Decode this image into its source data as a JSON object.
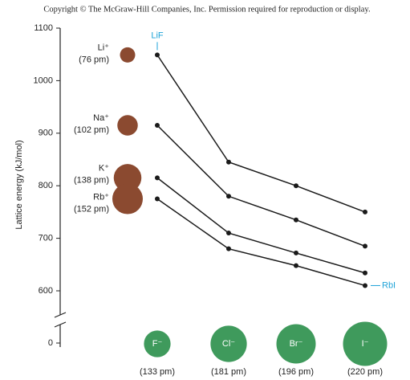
{
  "copyright": "Copyright © The McGraw-Hill Companies, Inc. Permission required for reproduction or display.",
  "chart_data": {
    "type": "line",
    "y_label": "Lattice energy (kJ/mol)",
    "categories": [
      "F⁻",
      "Cl⁻",
      "Br⁻",
      "I⁻"
    ],
    "category_radii": [
      133,
      181,
      196,
      220
    ],
    "category_radius_labels": [
      "(133 pm)",
      "(181 pm)",
      "(196 pm)",
      "(220 pm)"
    ],
    "category_color": "#3f9a5c",
    "series": [
      {
        "name": "Li⁺",
        "radius": 76,
        "radius_label": "(76 pm)",
        "color": "#8b4a30",
        "values": [
          1049,
          845,
          800,
          750
        ]
      },
      {
        "name": "Na⁺",
        "radius": 102,
        "radius_label": "(102 pm)",
        "color": "#8b4a30",
        "values": [
          915,
          780,
          735,
          685
        ]
      },
      {
        "name": "K⁺",
        "radius": 138,
        "radius_label": "(138 pm)",
        "color": "#8b4a30",
        "values": [
          815,
          710,
          672,
          634
        ]
      },
      {
        "name": "Rb⁺",
        "radius": 152,
        "radius_label": "(152 pm)",
        "color": "#8b4a30",
        "values": [
          775,
          680,
          648,
          610
        ]
      }
    ],
    "line_color": "#1a1a1a",
    "ylim": [
      0,
      1100
    ],
    "axis_break": [
      0,
      600
    ],
    "yticks": [
      0,
      600,
      700,
      800,
      900,
      1000,
      1100
    ],
    "annotations": [
      {
        "text": "LiF",
        "series": 0,
        "point": 0
      },
      {
        "text": "RbI",
        "series": 3,
        "point": 3
      }
    ],
    "annotation_color": "#1ea3d8"
  }
}
